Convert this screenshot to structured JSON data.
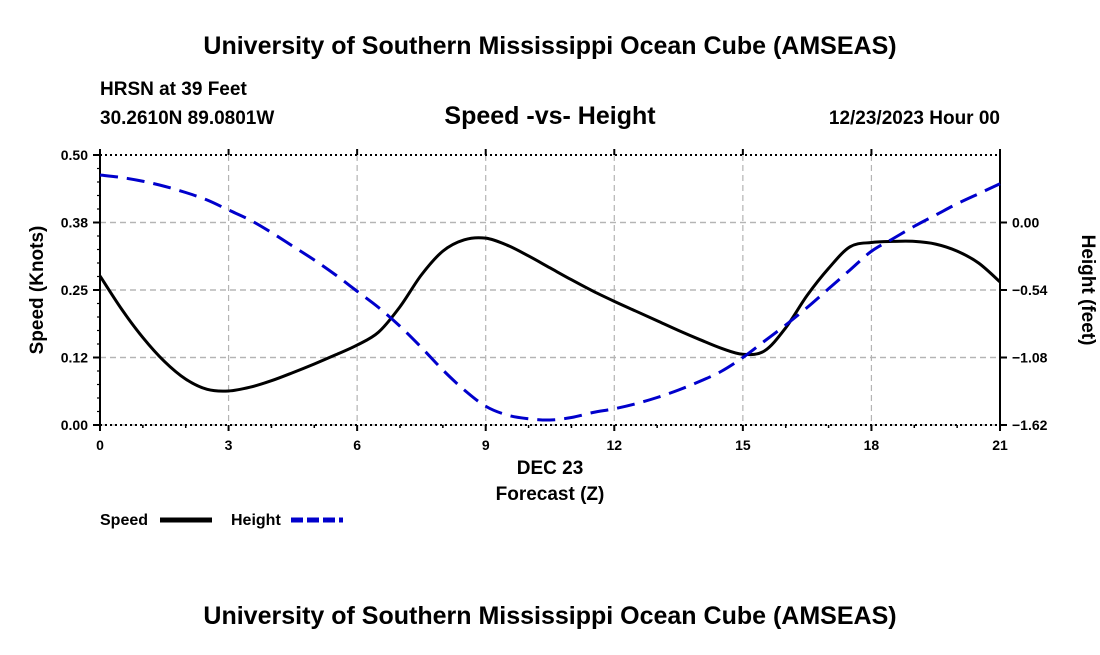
{
  "header": {
    "title": "University of Southern Mississippi Ocean Cube (AMSEAS)",
    "station": "HRSN at 39 Feet",
    "coords": "30.2610N  89.0801W",
    "datetime": "12/23/2023 Hour 00"
  },
  "footer": {
    "title": "University of Southern Mississippi Ocean Cube (AMSEAS)"
  },
  "colors": {
    "speed": "#000000",
    "height": "#0000cc",
    "grid": "#b4b4b4"
  },
  "chart_data": {
    "type": "line",
    "title": "Speed -vs- Height",
    "xlabel": "Forecast (Z)",
    "xlabel_date": "DEC 23",
    "ylabel": "Speed (Knots)",
    "y2label": "Height (feet)",
    "xlim": [
      0,
      21
    ],
    "ylim": [
      0,
      0.5
    ],
    "y2lim": [
      -1.62,
      0.54
    ],
    "x_ticks": [
      0,
      3,
      6,
      9,
      12,
      15,
      18,
      21
    ],
    "x_tick_labels": [
      "0",
      "3",
      "6",
      "9",
      "12",
      "15",
      "18",
      "21"
    ],
    "y_ticks": [
      0,
      0.125,
      0.25,
      0.375,
      0.5
    ],
    "y_tick_labels": [
      "0.00",
      "0.12",
      "0.25",
      "0.38",
      "0.50"
    ],
    "y2_ticks": [
      -1.62,
      -1.08,
      -0.54,
      0.0
    ],
    "y2_tick_labels": [
      "−1.62",
      "−1.08",
      "−0.54",
      "0.00"
    ],
    "series": [
      {
        "name": "Speed",
        "axis": "left",
        "style": "solid",
        "x": [
          0,
          0.5,
          1,
          1.5,
          2,
          2.5,
          3,
          3.5,
          4,
          4.5,
          5,
          5.5,
          6,
          6.5,
          7,
          7.5,
          8,
          8.5,
          9,
          9.5,
          10,
          10.5,
          11,
          11.5,
          12,
          12.5,
          13,
          13.5,
          14,
          14.5,
          15,
          15.5,
          16,
          16.5,
          17,
          17.5,
          18,
          18.5,
          19,
          19.5,
          20,
          20.5,
          21
        ],
        "values": [
          0.276,
          0.215,
          0.162,
          0.118,
          0.085,
          0.066,
          0.063,
          0.07,
          0.082,
          0.097,
          0.113,
          0.13,
          0.148,
          0.172,
          0.219,
          0.278,
          0.322,
          0.343,
          0.346,
          0.333,
          0.313,
          0.291,
          0.269,
          0.248,
          0.229,
          0.211,
          0.193,
          0.175,
          0.158,
          0.142,
          0.131,
          0.137,
          0.18,
          0.24,
          0.29,
          0.33,
          0.338,
          0.34,
          0.34,
          0.335,
          0.322,
          0.3,
          0.265
        ]
      },
      {
        "name": "Height",
        "axis": "right",
        "style": "dashed",
        "x": [
          0,
          0.5,
          1,
          1.5,
          2,
          2.5,
          3,
          3.5,
          4,
          4.5,
          5,
          5.5,
          6,
          6.5,
          7,
          7.5,
          8,
          8.5,
          9,
          9.5,
          10,
          10.5,
          11,
          11.5,
          12,
          12.5,
          13,
          13.5,
          14,
          14.5,
          15,
          15.5,
          16,
          16.5,
          17,
          17.5,
          18,
          18.5,
          19,
          19.5,
          20,
          20.5,
          21
        ],
        "values": [
          0.38,
          0.36,
          0.33,
          0.29,
          0.24,
          0.18,
          0.1,
          0.02,
          -0.08,
          -0.19,
          -0.3,
          -0.42,
          -0.55,
          -0.68,
          -0.83,
          -1.0,
          -1.18,
          -1.34,
          -1.47,
          -1.54,
          -1.57,
          -1.58,
          -1.56,
          -1.52,
          -1.49,
          -1.45,
          -1.4,
          -1.34,
          -1.27,
          -1.19,
          -1.08,
          -0.95,
          -0.82,
          -0.68,
          -0.53,
          -0.38,
          -0.23,
          -0.13,
          -0.03,
          0.06,
          0.15,
          0.23,
          0.31
        ]
      }
    ],
    "legend": [
      {
        "label": "Speed",
        "style": "solid",
        "color": "#000000"
      },
      {
        "label": "Height",
        "style": "dashed",
        "color": "#0000cc"
      }
    ]
  }
}
